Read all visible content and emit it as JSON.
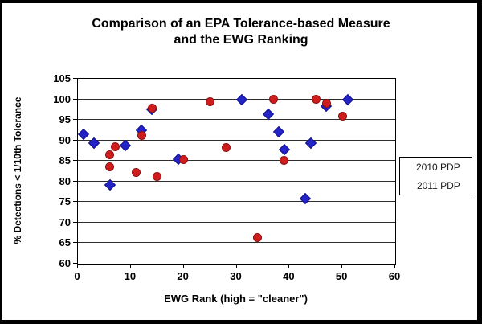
{
  "title": {
    "lines": [
      "Comparison of an EPA Tolerance-based Measure",
      "and the EWG Ranking"
    ]
  },
  "colors": {
    "series_2010_fill": "#2323c8",
    "series_2010_edge": "#12128e",
    "series_2011_fill": "#cf1d1d",
    "series_2011_edge": "#8e1010",
    "gridline": "#2e2e2e",
    "axis": "#000000",
    "background": "#ffffff",
    "frame": "#000000"
  },
  "legend": {
    "items": [
      {
        "label": "2010 PDP",
        "marker": "diamond-icon"
      },
      {
        "label": "2011 PDP",
        "marker": "circle-icon"
      }
    ]
  },
  "chart_data": {
    "type": "scatter",
    "title": "Comparison of an EPA Tolerance-based Measure and the EWG Ranking",
    "title_lines": [
      "Comparison of an EPA Tolerance-based Measure",
      "and the EWG Ranking"
    ],
    "xlabel": "EWG Rank (high = \"cleaner\")",
    "ylabel": "% Detections < 1/10th Tolerance",
    "xlim": [
      0,
      60
    ],
    "ylim": [
      60,
      105
    ],
    "xticks": [
      0,
      10,
      20,
      30,
      40,
      50,
      60
    ],
    "yticks": [
      60,
      65,
      70,
      75,
      80,
      85,
      90,
      95,
      100,
      105
    ],
    "grid": "horizontal",
    "legend_position": "right",
    "series": [
      {
        "name": "2010 PDP",
        "marker": "diamond",
        "color": "#2323c8",
        "points": [
          [
            1,
            91.5
          ],
          [
            3,
            89.3
          ],
          [
            6,
            79.2
          ],
          [
            9,
            88.8
          ],
          [
            12,
            92.5
          ],
          [
            14,
            97.5
          ],
          [
            19,
            85.5
          ],
          [
            31,
            100
          ],
          [
            36,
            96.3
          ],
          [
            38,
            92
          ],
          [
            39,
            87.8
          ],
          [
            43,
            75.8
          ],
          [
            44,
            89.3
          ],
          [
            47,
            98.3
          ],
          [
            51,
            100
          ]
        ]
      },
      {
        "name": "2011 PDP",
        "marker": "circle",
        "color": "#cf1d1d",
        "points": [
          [
            6,
            86.5
          ],
          [
            6,
            83.5
          ],
          [
            7,
            88.5
          ],
          [
            11,
            82.2
          ],
          [
            12,
            91.3
          ],
          [
            14,
            97.8
          ],
          [
            15,
            81.2
          ],
          [
            20,
            85.3
          ],
          [
            25,
            99.5
          ],
          [
            28,
            88.3
          ],
          [
            34,
            66.3
          ],
          [
            37,
            100
          ],
          [
            39,
            85.2
          ],
          [
            45,
            100
          ],
          [
            47,
            99
          ],
          [
            50,
            96
          ]
        ]
      }
    ]
  }
}
